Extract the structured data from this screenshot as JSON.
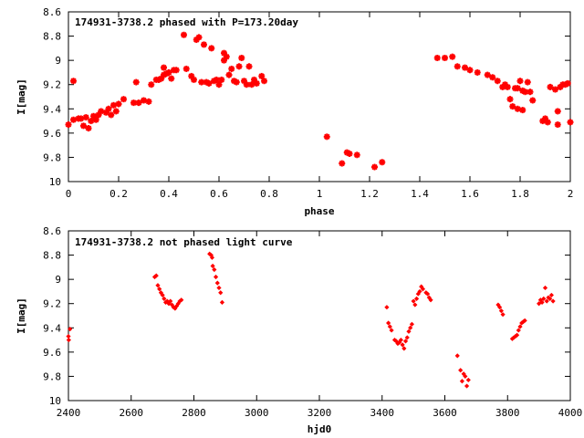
{
  "chart_data": [
    {
      "type": "scatter",
      "title": "174931-3738.2 phased with P=173.20day",
      "xlabel": "phase",
      "ylabel": "I[mag]",
      "xlim": [
        0,
        2
      ],
      "ylim": [
        10,
        8.6
      ],
      "y_inverted": true,
      "x_ticks": [
        "0",
        "0.2",
        "0.4",
        "0.6",
        "0.8",
        "1",
        "1.2",
        "1.4",
        "1.6",
        "1.8",
        "2"
      ],
      "x_tick_values": [
        0,
        0.2,
        0.4,
        0.6,
        0.8,
        1,
        1.2,
        1.4,
        1.6,
        1.8,
        2
      ],
      "y_ticks": [
        "8.6",
        "8.8",
        "9",
        "9.2",
        "9.4",
        "9.6",
        "9.8",
        "10"
      ],
      "y_tick_values": [
        8.6,
        8.8,
        9.0,
        9.2,
        9.4,
        9.6,
        9.8,
        10.0
      ],
      "marker_color": "#ff0000",
      "marker": "cross",
      "series": [
        {
          "points": [
            [
              0.0,
              9.53
            ],
            [
              0.02,
              9.17
            ],
            [
              0.02,
              9.49
            ],
            [
              0.04,
              9.48
            ],
            [
              0.05,
              9.48
            ],
            [
              0.06,
              9.54
            ],
            [
              0.07,
              9.47
            ],
            [
              0.08,
              9.56
            ],
            [
              0.09,
              9.5
            ],
            [
              0.1,
              9.46
            ],
            [
              0.11,
              9.49
            ],
            [
              0.12,
              9.45
            ],
            [
              0.13,
              9.42
            ],
            [
              0.15,
              9.43
            ],
            [
              0.16,
              9.4
            ],
            [
              0.17,
              9.45
            ],
            [
              0.18,
              9.37
            ],
            [
              0.19,
              9.42
            ],
            [
              0.2,
              9.36
            ],
            [
              0.22,
              9.32
            ],
            [
              0.26,
              9.35
            ],
            [
              0.27,
              9.18
            ],
            [
              0.28,
              9.35
            ],
            [
              0.3,
              9.33
            ],
            [
              0.32,
              9.34
            ],
            [
              0.33,
              9.2
            ],
            [
              0.35,
              9.16
            ],
            [
              0.36,
              9.16
            ],
            [
              0.37,
              9.15
            ],
            [
              0.38,
              9.12
            ],
            [
              0.38,
              9.06
            ],
            [
              0.39,
              9.11
            ],
            [
              0.4,
              9.1
            ],
            [
              0.41,
              9.15
            ],
            [
              0.42,
              9.08
            ],
            [
              0.43,
              9.08
            ],
            [
              0.46,
              8.79
            ],
            [
              0.47,
              9.07
            ],
            [
              0.49,
              9.13
            ],
            [
              0.5,
              9.16
            ],
            [
              0.51,
              8.83
            ],
            [
              0.52,
              8.81
            ],
            [
              0.53,
              9.18
            ],
            [
              0.54,
              8.87
            ],
            [
              0.55,
              9.18
            ],
            [
              0.56,
              9.19
            ],
            [
              0.57,
              8.9
            ],
            [
              0.58,
              9.17
            ],
            [
              0.59,
              9.16
            ],
            [
              0.6,
              9.2
            ],
            [
              0.61,
              9.16
            ],
            [
              0.62,
              8.94
            ],
            [
              0.62,
              9.0
            ],
            [
              0.63,
              8.97
            ],
            [
              0.64,
              9.12
            ],
            [
              0.65,
              9.07
            ],
            [
              0.66,
              9.17
            ],
            [
              0.67,
              9.18
            ],
            [
              0.68,
              9.05
            ],
            [
              0.69,
              8.98
            ],
            [
              0.7,
              9.17
            ],
            [
              0.71,
              9.2
            ],
            [
              0.72,
              9.05
            ],
            [
              0.73,
              9.2
            ],
            [
              0.74,
              9.16
            ],
            [
              0.75,
              9.19
            ],
            [
              0.77,
              9.13
            ],
            [
              0.78,
              9.17
            ],
            [
              1.03,
              9.63
            ],
            [
              1.09,
              9.85
            ],
            [
              1.11,
              9.76
            ],
            [
              1.12,
              9.77
            ],
            [
              1.15,
              9.78
            ],
            [
              1.22,
              9.88
            ],
            [
              1.25,
              9.84
            ],
            [
              1.47,
              8.98
            ],
            [
              1.5,
              8.98
            ],
            [
              1.53,
              8.97
            ],
            [
              1.55,
              9.05
            ],
            [
              1.58,
              9.06
            ],
            [
              1.6,
              9.08
            ],
            [
              1.63,
              9.1
            ],
            [
              1.67,
              9.12
            ],
            [
              1.69,
              9.14
            ],
            [
              1.71,
              9.17
            ],
            [
              1.73,
              9.22
            ],
            [
              1.74,
              9.2
            ],
            [
              1.75,
              9.22
            ],
            [
              1.76,
              9.32
            ],
            [
              1.77,
              9.38
            ],
            [
              1.78,
              9.23
            ],
            [
              1.79,
              9.23
            ],
            [
              1.79,
              9.4
            ],
            [
              1.8,
              9.17
            ],
            [
              1.81,
              9.25
            ],
            [
              1.81,
              9.41
            ],
            [
              1.82,
              9.26
            ],
            [
              1.83,
              9.18
            ],
            [
              1.84,
              9.26
            ],
            [
              1.85,
              9.33
            ],
            [
              1.89,
              9.5
            ],
            [
              1.9,
              9.48
            ],
            [
              1.91,
              9.51
            ],
            [
              1.92,
              9.22
            ],
            [
              1.94,
              9.24
            ],
            [
              1.95,
              9.42
            ],
            [
              1.95,
              9.53
            ],
            [
              1.96,
              9.22
            ],
            [
              1.97,
              9.2
            ],
            [
              1.98,
              9.2
            ],
            [
              1.99,
              9.19
            ],
            [
              2.0,
              9.51
            ]
          ]
        }
      ]
    },
    {
      "type": "scatter",
      "title": "174931-3738.2 not phased light curve",
      "xlabel": "hjd0",
      "ylabel": "I[mag]",
      "xlim": [
        2400,
        4000
      ],
      "ylim": [
        10,
        8.6
      ],
      "y_inverted": true,
      "x_ticks": [
        "2400",
        "2600",
        "2800",
        "3000",
        "3200",
        "3400",
        "3600",
        "3800",
        "4000"
      ],
      "x_tick_values": [
        2400,
        2600,
        2800,
        3000,
        3200,
        3400,
        3600,
        3800,
        4000
      ],
      "y_ticks": [
        "8.6",
        "8.8",
        "9",
        "9.2",
        "9.4",
        "9.6",
        "9.8",
        "10"
      ],
      "y_tick_values": [
        8.6,
        8.8,
        9.0,
        9.2,
        9.4,
        9.6,
        9.8,
        10.0
      ],
      "marker_color": "#ff0000",
      "marker": "diamond",
      "series": [
        {
          "points": [
            [
              2400,
              9.47
            ],
            [
              2401,
              9.5
            ],
            [
              2405,
              9.41
            ],
            [
              2675,
              8.98
            ],
            [
              2680,
              8.97
            ],
            [
              2685,
              9.05
            ],
            [
              2690,
              9.08
            ],
            [
              2695,
              9.11
            ],
            [
              2700,
              9.13
            ],
            [
              2705,
              9.16
            ],
            [
              2710,
              9.19
            ],
            [
              2715,
              9.18
            ],
            [
              2720,
              9.2
            ],
            [
              2725,
              9.18
            ],
            [
              2730,
              9.21
            ],
            [
              2735,
              9.23
            ],
            [
              2740,
              9.24
            ],
            [
              2745,
              9.22
            ],
            [
              2750,
              9.2
            ],
            [
              2755,
              9.18
            ],
            [
              2760,
              9.17
            ],
            [
              2850,
              8.79
            ],
            [
              2855,
              8.8
            ],
            [
              2858,
              8.82
            ],
            [
              2860,
              8.89
            ],
            [
              2865,
              8.92
            ],
            [
              2870,
              8.98
            ],
            [
              2875,
              9.03
            ],
            [
              2880,
              9.07
            ],
            [
              2885,
              9.11
            ],
            [
              2890,
              9.19
            ],
            [
              3415,
              9.23
            ],
            [
              3420,
              9.36
            ],
            [
              3425,
              9.39
            ],
            [
              3430,
              9.42
            ],
            [
              3440,
              9.5
            ],
            [
              3445,
              9.51
            ],
            [
              3450,
              9.53
            ],
            [
              3455,
              9.52
            ],
            [
              3460,
              9.5
            ],
            [
              3465,
              9.54
            ],
            [
              3470,
              9.57
            ],
            [
              3475,
              9.51
            ],
            [
              3480,
              9.48
            ],
            [
              3485,
              9.43
            ],
            [
              3490,
              9.4
            ],
            [
              3495,
              9.37
            ],
            [
              3500,
              9.18
            ],
            [
              3505,
              9.21
            ],
            [
              3510,
              9.16
            ],
            [
              3515,
              9.12
            ],
            [
              3520,
              9.1
            ],
            [
              3525,
              9.06
            ],
            [
              3530,
              9.08
            ],
            [
              3540,
              9.11
            ],
            [
              3545,
              9.12
            ],
            [
              3550,
              9.15
            ],
            [
              3555,
              9.17
            ],
            [
              3640,
              9.63
            ],
            [
              3650,
              9.75
            ],
            [
              3655,
              9.84
            ],
            [
              3660,
              9.78
            ],
            [
              3665,
              9.8
            ],
            [
              3670,
              9.88
            ],
            [
              3675,
              9.83
            ],
            [
              3770,
              9.21
            ],
            [
              3775,
              9.23
            ],
            [
              3780,
              9.26
            ],
            [
              3785,
              9.29
            ],
            [
              3815,
              9.49
            ],
            [
              3820,
              9.48
            ],
            [
              3825,
              9.47
            ],
            [
              3830,
              9.46
            ],
            [
              3835,
              9.42
            ],
            [
              3840,
              9.39
            ],
            [
              3845,
              9.36
            ],
            [
              3850,
              9.35
            ],
            [
              3855,
              9.34
            ],
            [
              3900,
              9.2
            ],
            [
              3905,
              9.17
            ],
            [
              3910,
              9.19
            ],
            [
              3915,
              9.16
            ],
            [
              3920,
              9.07
            ],
            [
              3925,
              9.18
            ],
            [
              3930,
              9.15
            ],
            [
              3935,
              9.16
            ],
            [
              3940,
              9.13
            ],
            [
              3945,
              9.18
            ]
          ]
        }
      ]
    }
  ]
}
